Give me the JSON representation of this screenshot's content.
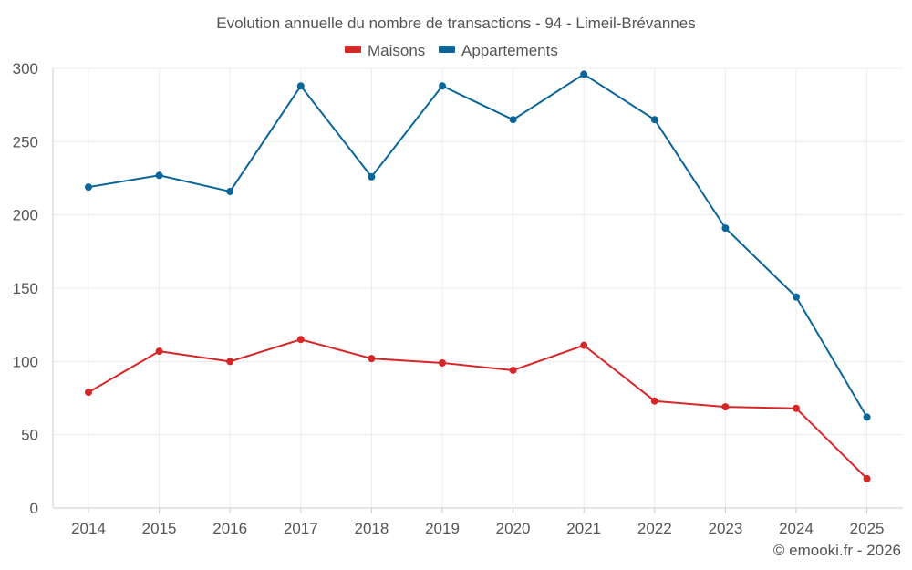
{
  "chart_data": {
    "type": "line",
    "title": "Evolution annuelle du nombre de transactions - 94 - Limeil-Brévannes",
    "categories": [
      "2014",
      "2015",
      "2016",
      "2017",
      "2018",
      "2019",
      "2020",
      "2021",
      "2022",
      "2023",
      "2024",
      "2025"
    ],
    "series": [
      {
        "name": "Maisons",
        "color": "#d62728",
        "values": [
          79,
          107,
          100,
          115,
          102,
          99,
          94,
          111,
          73,
          69,
          68,
          20
        ]
      },
      {
        "name": "Appartements",
        "color": "#0a6699",
        "values": [
          219,
          227,
          216,
          288,
          226,
          288,
          265,
          296,
          265,
          191,
          144,
          62
        ]
      }
    ],
    "ylim": [
      0,
      300
    ],
    "yticks": [
      0,
      50,
      100,
      150,
      200,
      250,
      300
    ],
    "xlabel": "",
    "ylabel": "",
    "grid": true,
    "legend_position": "top-center"
  },
  "credit": "© emooki.fr - 2026"
}
